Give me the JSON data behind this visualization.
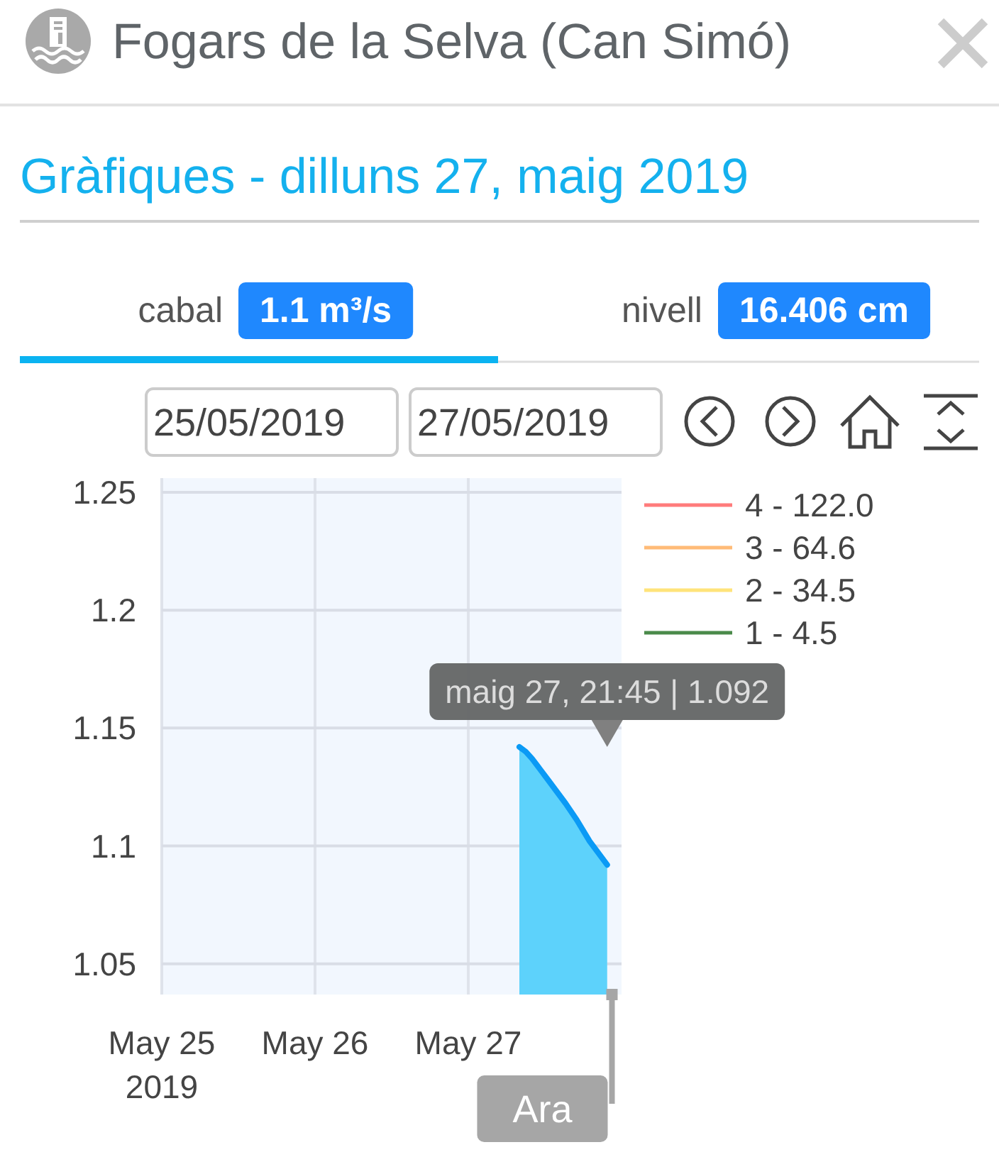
{
  "chart_data": {
    "type": "area",
    "title": "Fogars de la Selva (Can Simó)",
    "subtitle": "Gràfiques - dilluns 27, maig 2019",
    "x": [
      "2019-05-27T08:00",
      "2019-05-27T09:00",
      "2019-05-27T10:00",
      "2019-05-27T12:30",
      "2019-05-27T15:15",
      "2019-05-27T17:00",
      "2019-05-27T19:00",
      "2019-05-27T21:45"
    ],
    "series": [
      {
        "color": "#0b9af5",
        "values": [
          1.142,
          1.14,
          1.137,
          1.128,
          1.118,
          1.111,
          1.102,
          1.092
        ]
      },
      {
        "name": "4 - 122.0",
        "type": "line",
        "color": "#ff7b7b",
        "values": [
          null,
          null,
          null,
          null,
          null,
          null,
          null,
          null
        ]
      },
      {
        "name": "3 - 64.6",
        "type": "line",
        "color": "#ffbb77",
        "values": [
          null,
          null,
          null,
          null,
          null,
          null,
          null,
          null
        ]
      },
      {
        "name": "2 - 34.5",
        "type": "line",
        "color": "#ffe47a",
        "values": [
          null,
          null,
          null,
          null,
          null,
          null,
          null,
          null
        ]
      },
      {
        "name": "1 - 4.5",
        "type": "line",
        "color": "#4a8a4a",
        "values": [
          null,
          null,
          null,
          null,
          null,
          null,
          null,
          null
        ]
      }
    ],
    "xlim": [
      "2019-05-25",
      "2019-05-28"
    ],
    "xticks": [
      {
        "value": "2019-05-25",
        "label": "May 25\n2019"
      },
      {
        "value": "2019-05-26",
        "label": "May 26"
      },
      {
        "value": "2019-05-27",
        "label": "May 27"
      }
    ],
    "ylim": [
      1.037,
      1.256
    ],
    "yticks": [
      1.05,
      1.1,
      1.15,
      1.2,
      1.25
    ],
    "grid": true,
    "legend": "right",
    "ref_lines": [
      {
        "axis": "x",
        "value": "2019-05-27T22:30",
        "label": "Ara",
        "color": "#a6a6a6"
      }
    ],
    "annotations": [
      "maig 27, 21:45 | 1.092",
      "cabal",
      "1.1 m³/s",
      "nivell",
      "16.406 cm",
      "25/05/2019",
      "27/05/2019"
    ]
  }
}
